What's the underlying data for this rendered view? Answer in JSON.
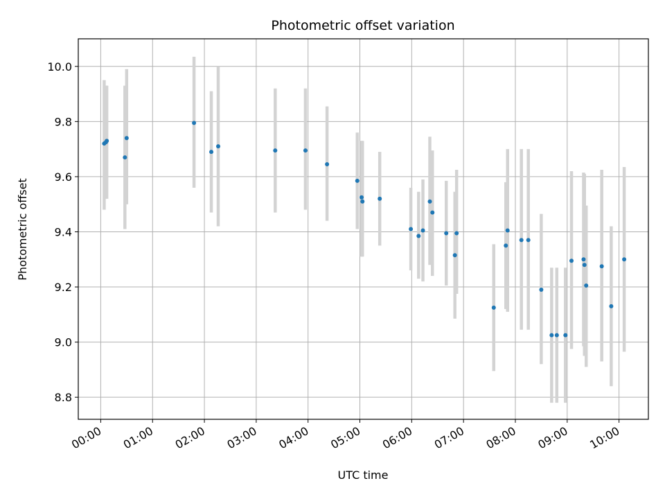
{
  "chart_data": {
    "type": "scatter",
    "title": "Photometric offset variation",
    "xlabel": "UTC time",
    "ylabel": "Photometric offset",
    "x_unit": "UTC time (HH:MM)",
    "xlim": [
      "-00:26",
      "10:34"
    ],
    "ylim": [
      8.72,
      10.1
    ],
    "xticks": [
      "00:00",
      "01:00",
      "02:00",
      "03:00",
      "04:00",
      "05:00",
      "06:00",
      "07:00",
      "08:00",
      "09:00",
      "10:00"
    ],
    "yticks": [
      "8.8",
      "9.0",
      "9.2",
      "9.4",
      "9.6",
      "9.8",
      "10.0"
    ],
    "grid": true,
    "colors": {
      "points": "#1f77b4",
      "errorbars": "#d3d3d3",
      "grid": "#b0b0b0"
    },
    "series": [
      {
        "points": [
          {
            "x": "00:04",
            "y": 9.72,
            "low": 9.48,
            "high": 9.95
          },
          {
            "x": "00:06",
            "y": 9.725,
            "low": 9.52,
            "high": 9.93
          },
          {
            "x": "00:07",
            "y": 9.73,
            "low": 9.52,
            "high": 9.93
          },
          {
            "x": "00:28",
            "y": 9.67,
            "low": 9.41,
            "high": 9.93
          },
          {
            "x": "00:30",
            "y": 9.74,
            "low": 9.5,
            "high": 9.99
          },
          {
            "x": "01:48",
            "y": 9.795,
            "low": 9.56,
            "high": 10.035
          },
          {
            "x": "02:08",
            "y": 9.69,
            "low": 9.47,
            "high": 9.91
          },
          {
            "x": "02:16",
            "y": 9.71,
            "low": 9.42,
            "high": 10.0
          },
          {
            "x": "03:22",
            "y": 9.695,
            "low": 9.47,
            "high": 9.92
          },
          {
            "x": "03:57",
            "y": 9.695,
            "low": 9.48,
            "high": 9.92
          },
          {
            "x": "04:22",
            "y": 9.645,
            "low": 9.44,
            "high": 9.855
          },
          {
            "x": "04:57",
            "y": 9.585,
            "low": 9.41,
            "high": 9.76
          },
          {
            "x": "05:02",
            "y": 9.525,
            "low": 9.31,
            "high": 9.73
          },
          {
            "x": "05:03",
            "y": 9.51,
            "low": 9.31,
            "high": 9.73
          },
          {
            "x": "05:23",
            "y": 9.52,
            "low": 9.35,
            "high": 9.69
          },
          {
            "x": "05:59",
            "y": 9.41,
            "low": 9.26,
            "high": 9.56
          },
          {
            "x": "06:08",
            "y": 9.385,
            "low": 9.23,
            "high": 9.545
          },
          {
            "x": "06:13",
            "y": 9.405,
            "low": 9.22,
            "high": 9.59
          },
          {
            "x": "06:21",
            "y": 9.51,
            "low": 9.28,
            "high": 9.745
          },
          {
            "x": "06:24",
            "y": 9.47,
            "low": 9.24,
            "high": 9.695
          },
          {
            "x": "06:40",
            "y": 9.395,
            "low": 9.205,
            "high": 9.585
          },
          {
            "x": "06:50",
            "y": 9.315,
            "low": 9.085,
            "high": 9.545
          },
          {
            "x": "06:52",
            "y": 9.395,
            "low": 9.175,
            "high": 9.625
          },
          {
            "x": "07:35",
            "y": 9.125,
            "low": 8.895,
            "high": 9.355
          },
          {
            "x": "07:49",
            "y": 9.35,
            "low": 9.12,
            "high": 9.58
          },
          {
            "x": "07:51",
            "y": 9.405,
            "low": 9.11,
            "high": 9.7
          },
          {
            "x": "08:07",
            "y": 9.37,
            "low": 9.045,
            "high": 9.7
          },
          {
            "x": "08:15",
            "y": 9.37,
            "low": 9.045,
            "high": 9.7
          },
          {
            "x": "08:30",
            "y": 9.19,
            "low": 8.92,
            "high": 9.465
          },
          {
            "x": "08:42",
            "y": 9.025,
            "low": 8.78,
            "high": 9.27
          },
          {
            "x": "08:48",
            "y": 9.025,
            "low": 8.78,
            "high": 9.27
          },
          {
            "x": "08:58",
            "y": 9.025,
            "low": 8.78,
            "high": 9.27
          },
          {
            "x": "09:05",
            "y": 9.295,
            "low": 8.975,
            "high": 9.62
          },
          {
            "x": "09:19",
            "y": 9.3,
            "low": 8.985,
            "high": 9.615
          },
          {
            "x": "09:20",
            "y": 9.28,
            "low": 8.95,
            "high": 9.61
          },
          {
            "x": "09:22",
            "y": 9.205,
            "low": 8.91,
            "high": 9.495
          },
          {
            "x": "09:40",
            "y": 9.275,
            "low": 8.93,
            "high": 9.625
          },
          {
            "x": "09:51",
            "y": 9.13,
            "low": 8.84,
            "high": 9.42
          },
          {
            "x": "10:06",
            "y": 9.3,
            "low": 8.965,
            "high": 9.635
          }
        ]
      }
    ]
  }
}
